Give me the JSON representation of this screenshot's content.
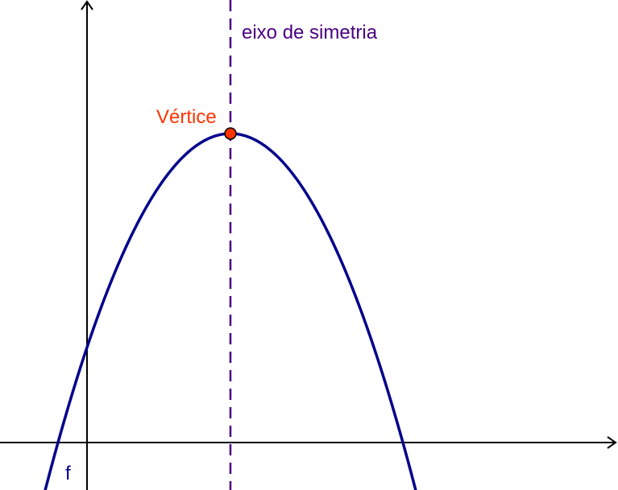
{
  "labels": {
    "axis_of_symmetry": "eixo de simetria",
    "vertex": "Vértice",
    "function": "f"
  },
  "colors": {
    "curve": "#00008b",
    "axis_of_symmetry": "#4b0082",
    "vertex_fill": "#ff3300",
    "vertex_label": "#ff3300",
    "axes": "#000000",
    "function_label": "#00008b",
    "background": "#ffffff"
  },
  "figure": {
    "curve_type": "parabola opening downward",
    "axis_of_symmetry_style": "dashed vertical line through the vertex",
    "vertex_marker": "filled circle"
  }
}
